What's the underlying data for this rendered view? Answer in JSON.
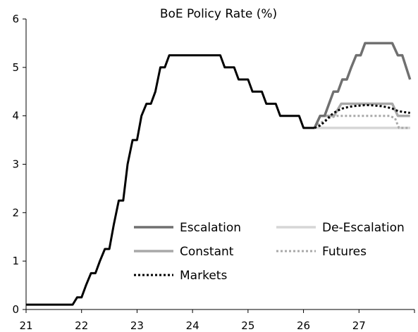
{
  "chart_data": {
    "type": "line",
    "title": "BoE Policy Rate (%)",
    "xlabel": "",
    "ylabel": "",
    "xlim": [
      21,
      28
    ],
    "ylim": [
      0,
      6
    ],
    "x_ticks": [
      "21",
      "22",
      "23",
      "24",
      "25",
      "26",
      "27"
    ],
    "y_ticks": [
      "0",
      "1",
      "2",
      "3",
      "4",
      "5",
      "6"
    ],
    "grid": false,
    "legend_position": "lower-right",
    "series": [
      {
        "name": "Escalation",
        "color": "#707070",
        "dash": "solid",
        "width": 3.5,
        "x": [
          26.2,
          26.3,
          26.38,
          26.46,
          26.54,
          26.62,
          26.7,
          26.78,
          26.86,
          26.95,
          27.03,
          27.11,
          27.2,
          27.3,
          27.45,
          27.6,
          27.7,
          27.78,
          27.92
        ],
        "y": [
          3.75,
          4.0,
          4.0,
          4.25,
          4.5,
          4.5,
          4.75,
          4.75,
          5.0,
          5.25,
          5.25,
          5.5,
          5.5,
          5.5,
          5.5,
          5.5,
          5.25,
          5.25,
          4.75
        ]
      },
      {
        "name": "De-Escalation",
        "color": "#d6d6d6",
        "dash": "solid",
        "width": 3.5,
        "x": [
          26.2,
          27.92
        ],
        "y": [
          3.75,
          3.75
        ]
      },
      {
        "name": "Constant",
        "color": "#a8a8a8",
        "dash": "solid",
        "width": 3.5,
        "x": [
          26.2,
          26.3,
          26.42,
          26.55,
          26.68,
          26.8,
          27.0,
          27.3,
          27.6,
          27.7,
          27.92
        ],
        "y": [
          3.75,
          4.0,
          4.0,
          4.0,
          4.25,
          4.25,
          4.25,
          4.25,
          4.25,
          4.0,
          4.0
        ]
      },
      {
        "name": "Futures",
        "color": "#a8a8a8",
        "dash": "dotted",
        "width": 3,
        "x": [
          26.2,
          26.3,
          26.45,
          26.6,
          26.8,
          27.0,
          27.3,
          27.55,
          27.65,
          27.72,
          27.8,
          27.92
        ],
        "y": [
          3.75,
          3.85,
          3.95,
          4.0,
          4.0,
          4.0,
          4.0,
          4.0,
          3.95,
          3.75,
          3.75,
          3.75
        ]
      },
      {
        "name": "Markets",
        "color": "#000000",
        "dash": "dotted",
        "width": 3,
        "x": [
          26.2,
          26.3,
          26.4,
          26.5,
          26.6,
          26.7,
          26.8,
          26.9,
          27.0,
          27.1,
          27.2,
          27.3,
          27.4,
          27.5,
          27.6,
          27.7,
          27.8,
          27.92
        ],
        "y": [
          3.75,
          3.8,
          3.9,
          4.02,
          4.1,
          4.15,
          4.18,
          4.2,
          4.21,
          4.22,
          4.22,
          4.21,
          4.2,
          4.18,
          4.15,
          4.1,
          4.08,
          4.06
        ]
      },
      {
        "name": "",
        "color": "#000000",
        "dash": "solid",
        "width": 3,
        "x": [
          21.0,
          21.84,
          21.92,
          22.0,
          22.08,
          22.17,
          22.25,
          22.33,
          22.42,
          22.5,
          22.58,
          22.67,
          22.75,
          22.83,
          22.92,
          23.0,
          23.08,
          23.17,
          23.25,
          23.33,
          23.42,
          23.5,
          23.58,
          24.5,
          24.58,
          24.75,
          24.83,
          25.0,
          25.08,
          25.25,
          25.33,
          25.5,
          25.58,
          25.92,
          26.0,
          26.2
        ],
        "y": [
          0.1,
          0.1,
          0.25,
          0.25,
          0.5,
          0.75,
          0.75,
          1.0,
          1.25,
          1.25,
          1.75,
          2.25,
          2.25,
          3.0,
          3.5,
          3.5,
          4.0,
          4.25,
          4.25,
          4.5,
          5.0,
          5.0,
          5.25,
          5.25,
          5.0,
          5.0,
          4.75,
          4.75,
          4.5,
          4.5,
          4.25,
          4.25,
          4.0,
          4.0,
          3.75,
          3.75
        ]
      }
    ]
  }
}
